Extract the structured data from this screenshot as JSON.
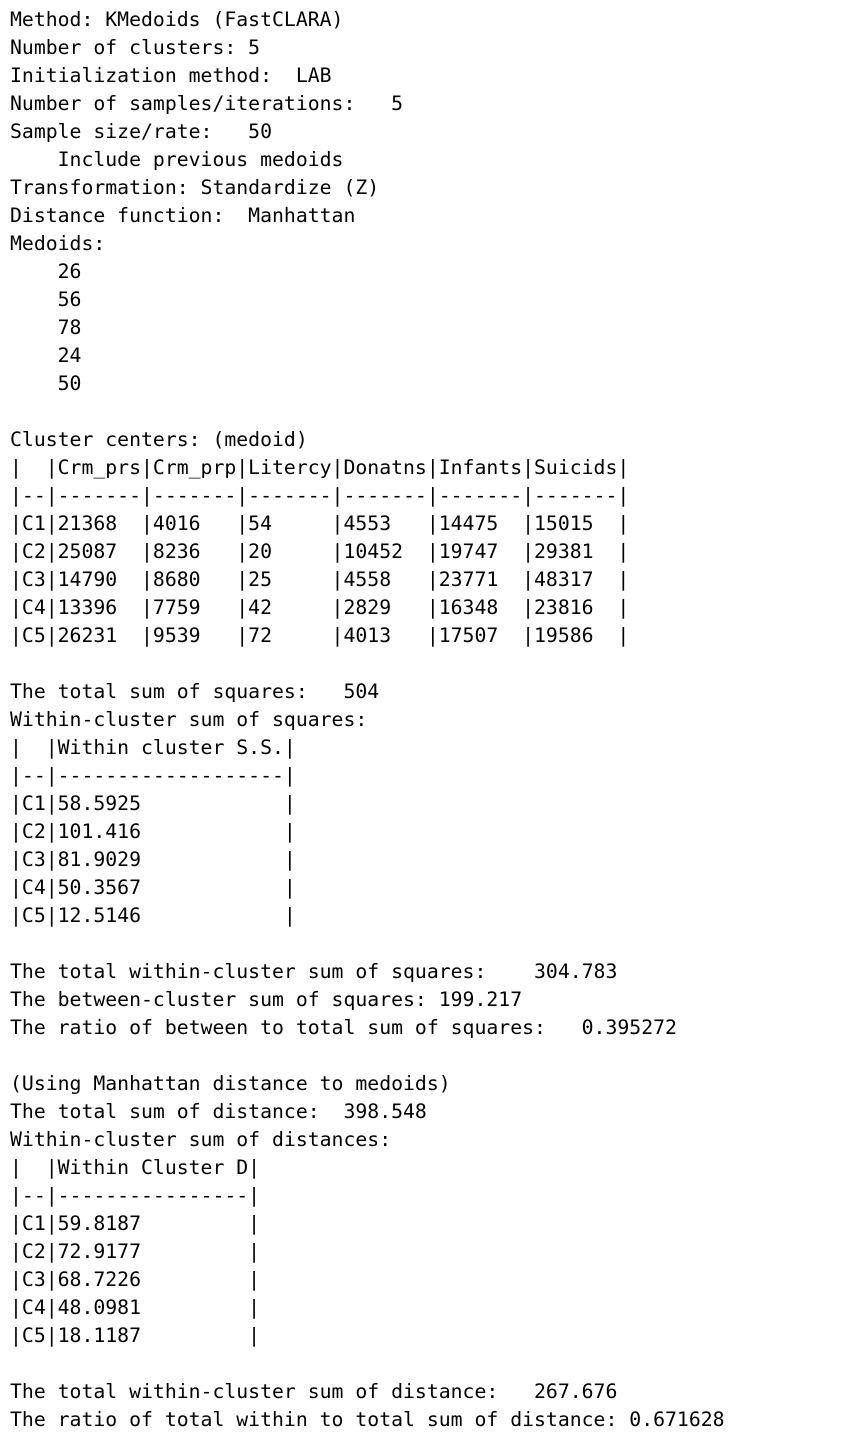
{
  "output": {
    "lines": [
      "Method: KMedoids (FastCLARA)",
      "Number of clusters: 5",
      "Initialization method:  LAB",
      "Number of samples/iterations:   5",
      "Sample size/rate:   50",
      "    Include previous medoids",
      "Transformation: Standardize (Z)",
      "Distance function:  Manhattan",
      "Medoids:",
      "    26",
      "    56",
      "    78",
      "    24",
      "    50",
      "",
      "Cluster centers: (medoid)",
      "|  |Crm_prs|Crm_prp|Litercy|Donatns|Infants|Suicids|",
      "|--|-------|-------|-------|-------|-------|-------|",
      "|C1|21368  |4016   |54     |4553   |14475  |15015  |",
      "|C2|25087  |8236   |20     |10452  |19747  |29381  |",
      "|C3|14790  |8680   |25     |4558   |23771  |48317  |",
      "|C4|13396  |7759   |42     |2829   |16348  |23816  |",
      "|C5|26231  |9539   |72     |4013   |17507  |19586  |",
      "",
      "The total sum of squares:   504",
      "Within-cluster sum of squares:",
      "|  |Within cluster S.S.|",
      "|--|-------------------|",
      "|C1|58.5925            |",
      "|C2|101.416            |",
      "|C3|81.9029            |",
      "|C4|50.3567            |",
      "|C5|12.5146            |",
      "",
      "The total within-cluster sum of squares:    304.783",
      "The between-cluster sum of squares: 199.217",
      "The ratio of between to total sum of squares:   0.395272",
      "",
      "(Using Manhattan distance to medoids)",
      "The total sum of distance:  398.548",
      "Within-cluster sum of distances:",
      "|  |Within Cluster D|",
      "|--|----------------|",
      "|C1|59.8187         |",
      "|C2|72.9177         |",
      "|C3|68.7226         |",
      "|C4|48.0981         |",
      "|C5|18.1187         |",
      "",
      "The total within-cluster sum of distance:   267.676",
      "The ratio of total within to total sum of distance: 0.671628"
    ]
  }
}
